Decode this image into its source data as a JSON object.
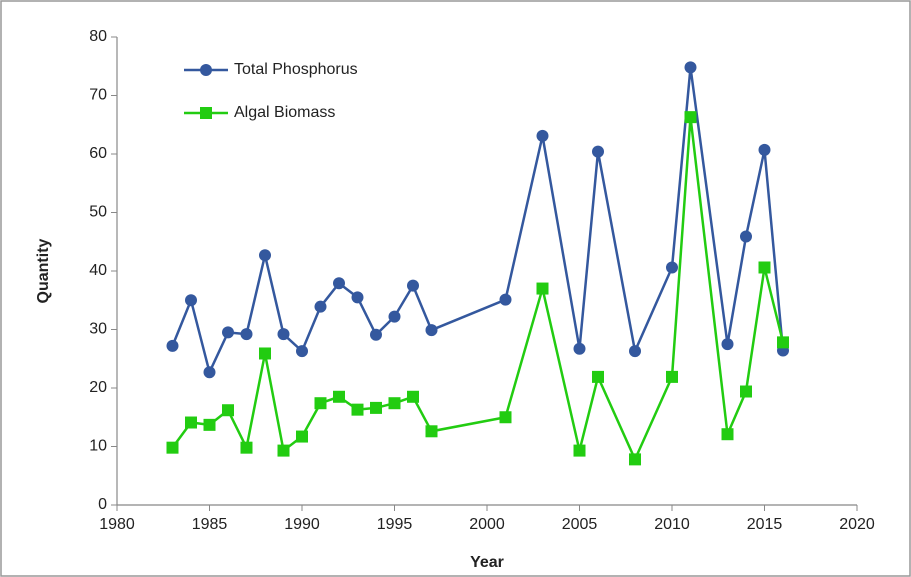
{
  "chart_data": {
    "type": "line",
    "x_label": "Year",
    "y_label": "Quantity",
    "x": [
      1983,
      1984,
      1985,
      1986,
      1987,
      1988,
      1989,
      1990,
      1991,
      1992,
      1993,
      1994,
      1995,
      1996,
      1997,
      2001,
      2003,
      2005,
      2006,
      2008,
      2010,
      2011,
      2013,
      2014,
      2015,
      2016
    ],
    "series": [
      {
        "name": "Total Phosphorus",
        "color": "#34589e",
        "marker": "circle",
        "values": [
          27.2,
          35,
          22.7,
          29.5,
          29.2,
          42.7,
          29.2,
          26.3,
          33.9,
          37.9,
          35.5,
          29.1,
          32.2,
          37.5,
          29.9,
          35.1,
          63.1,
          26.7,
          60.4,
          26.3,
          40.6,
          74.8,
          27.5,
          45.9,
          60.7,
          26.4
        ]
      },
      {
        "name": "Algal Biomass",
        "color": "#22cc11",
        "marker": "square",
        "values": [
          9.8,
          14.1,
          13.7,
          16.2,
          9.8,
          25.9,
          9.3,
          11.7,
          17.4,
          18.5,
          16.3,
          16.6,
          17.4,
          18.5,
          12.6,
          15,
          37,
          9.3,
          21.9,
          7.8,
          21.9,
          66.3,
          12.1,
          19.4,
          40.6,
          27.8
        ]
      }
    ],
    "xlim": [
      1980,
      2020
    ],
    "xticks": [
      1980,
      1985,
      1990,
      1995,
      2000,
      2005,
      2010,
      2015,
      2020
    ],
    "ylim": [
      0,
      80
    ],
    "yticks": [
      0,
      10,
      20,
      30,
      40,
      50,
      60,
      70,
      80
    ],
    "legend": "upper left",
    "grid": false
  }
}
